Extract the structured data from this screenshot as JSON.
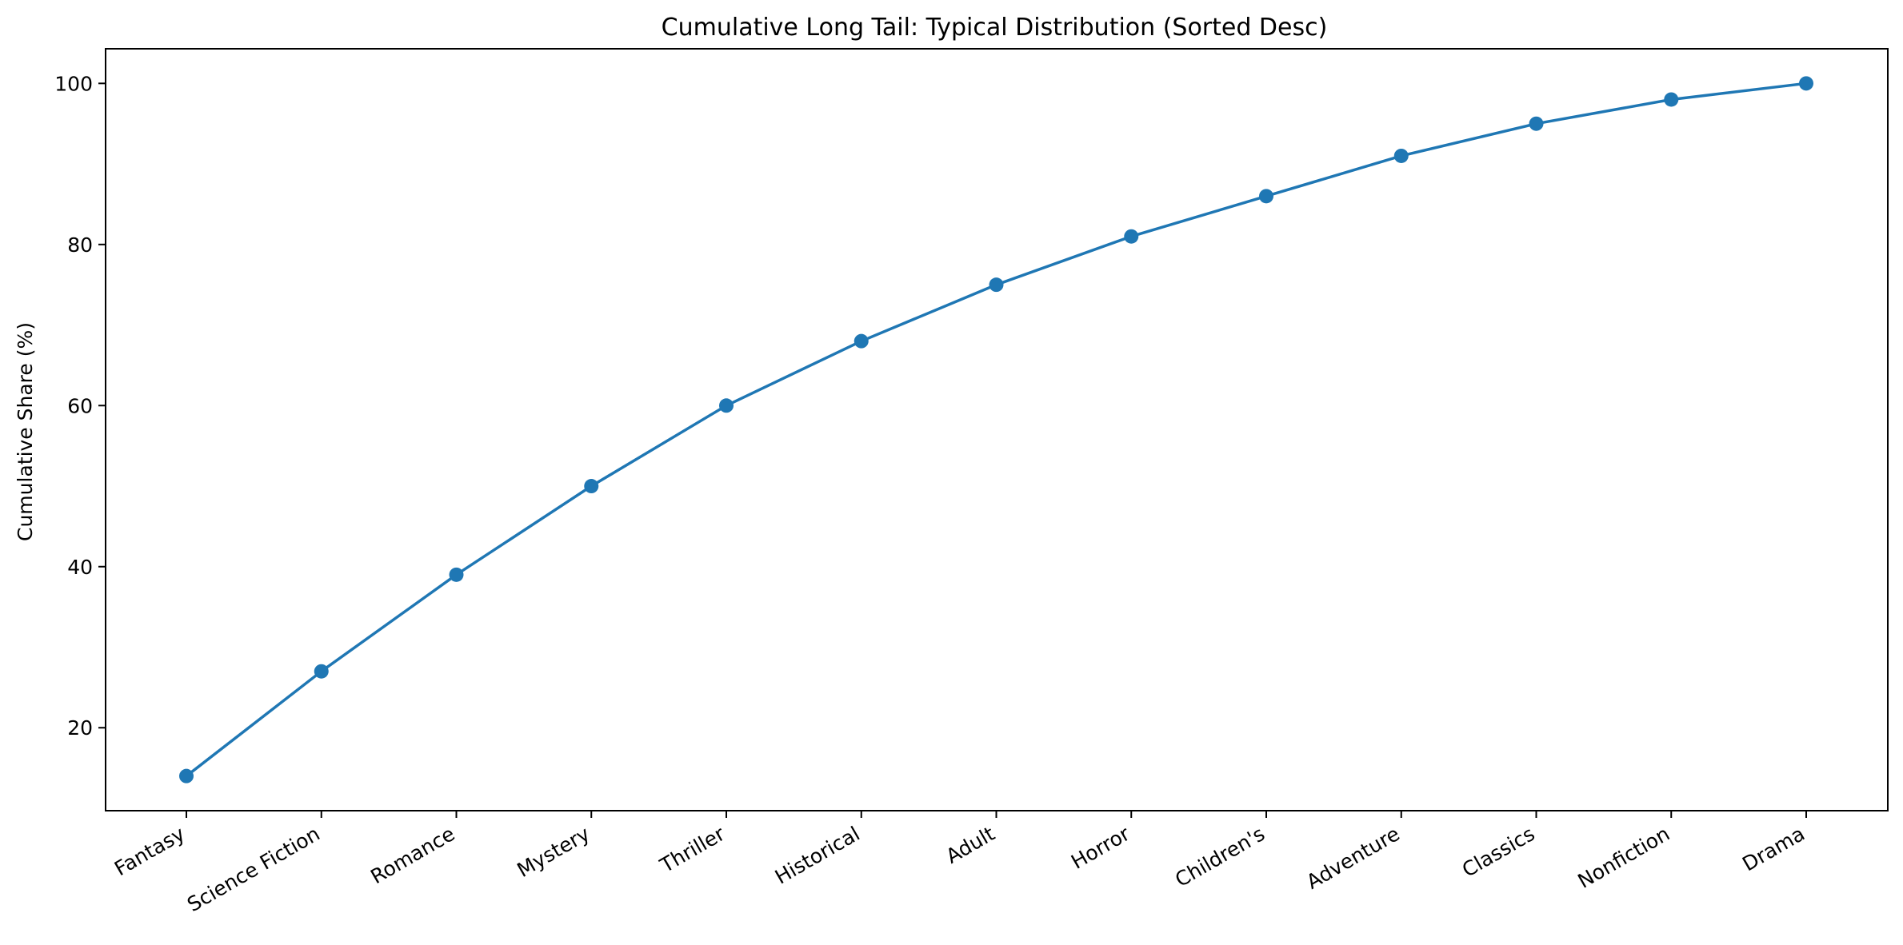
{
  "chart_data": {
    "type": "line",
    "title": "Cumulative Long Tail: Typical Distribution (Sorted Desc)",
    "xlabel": "",
    "ylabel": "Cumulative Share (%)",
    "categories": [
      "Fantasy",
      "Science Fiction",
      "Romance",
      "Mystery",
      "Thriller",
      "Historical",
      "Adult",
      "Horror",
      "Children's",
      "Adventure",
      "Classics",
      "Nonfiction",
      "Drama"
    ],
    "series": [
      {
        "values": [
          14,
          27,
          39,
          50,
          60,
          68,
          75,
          81,
          86,
          91,
          95,
          98,
          100
        ]
      }
    ],
    "yticks": [
      20,
      40,
      60,
      80,
      100
    ],
    "ylim": [
      9.7,
      104.3
    ],
    "grid": false,
    "legend": "none",
    "colors": {
      "line": "#1f77b4",
      "axes": "#000000"
    },
    "marker": "circle"
  }
}
